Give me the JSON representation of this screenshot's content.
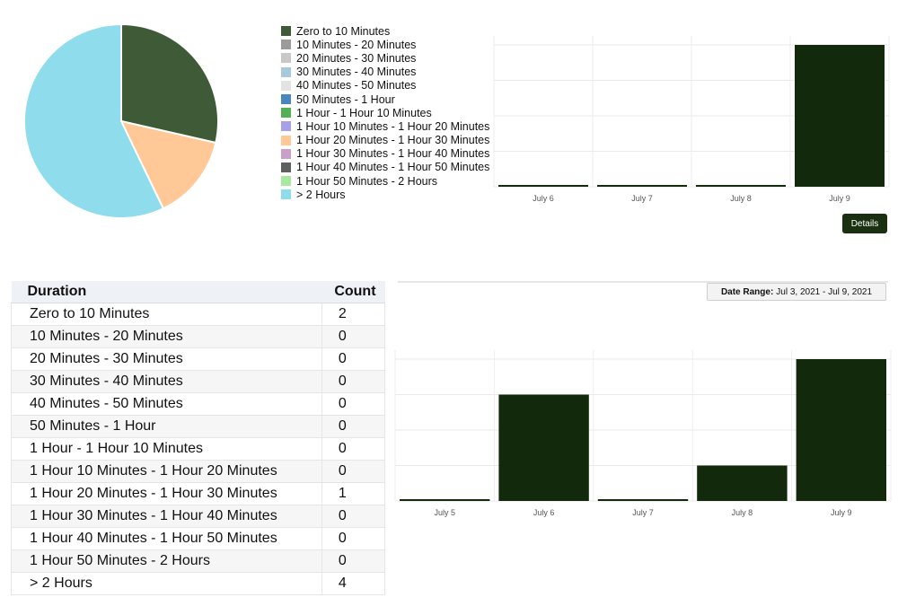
{
  "pie_chart": {
    "slices": [
      {
        "label": "Zero to 10 Minutes",
        "value": 2,
        "color": "#3f5a36"
      },
      {
        "label": "1 Hour 20 Minutes - 1 Hour 30 Minutes",
        "value": 1,
        "color": "#ffc896"
      },
      {
        "label": "> 2 Hours",
        "value": 4,
        "color": "#8edcec"
      }
    ]
  },
  "legend": [
    {
      "label": "Zero to 10 Minutes",
      "color": "#3f5a36"
    },
    {
      "label": "10 Minutes - 20 Minutes",
      "color": "#9b9b9b"
    },
    {
      "label": "20 Minutes - 30 Minutes",
      "color": "#c8c8c8"
    },
    {
      "label": "30 Minutes - 40 Minutes",
      "color": "#a8c8dc"
    },
    {
      "label": "40 Minutes - 50 Minutes",
      "color": "#e3e3e3"
    },
    {
      "label": "50 Minutes - 1 Hour",
      "color": "#4a86c0"
    },
    {
      "label": "1 Hour - 1 Hour 10 Minutes",
      "color": "#54b054"
    },
    {
      "label": "1 Hour 10 Minutes - 1 Hour 20 Minutes",
      "color": "#a5a0e8"
    },
    {
      "label": "1 Hour 20 Minutes - 1 Hour 30 Minutes",
      "color": "#ffc896"
    },
    {
      "label": "1 Hour 30 Minutes - 1 Hour 40 Minutes",
      "color": "#c8a0c8"
    },
    {
      "label": "1 Hour 40 Minutes - 1 Hour 50 Minutes",
      "color": "#5f5f5f"
    },
    {
      "label": "1 Hour 50 Minutes - 2 Hours",
      "color": "#a8e8a0"
    },
    {
      "label": "> 2 Hours",
      "color": "#8edcec"
    }
  ],
  "details_button": {
    "label": "Details"
  },
  "date_range": {
    "label": "Date Range:",
    "value": "Jul 3, 2021 - Jul 9, 2021"
  },
  "table": {
    "headers": [
      "Duration",
      "Count"
    ],
    "rows": [
      {
        "duration": "Zero to 10 Minutes",
        "count": "2"
      },
      {
        "duration": "10 Minutes - 20 Minutes",
        "count": "0"
      },
      {
        "duration": "20 Minutes - 30 Minutes",
        "count": "0"
      },
      {
        "duration": "30 Minutes - 40 Minutes",
        "count": "0"
      },
      {
        "duration": "40 Minutes - 50 Minutes",
        "count": "0"
      },
      {
        "duration": "50 Minutes - 1 Hour",
        "count": "0"
      },
      {
        "duration": "1 Hour - 1 Hour 10 Minutes",
        "count": "0"
      },
      {
        "duration": "1 Hour 10 Minutes - 1 Hour 20 Minutes",
        "count": "0"
      },
      {
        "duration": "1 Hour 20 Minutes - 1 Hour 30 Minutes",
        "count": "1"
      },
      {
        "duration": "1 Hour 30 Minutes - 1 Hour 40 Minutes",
        "count": "0"
      },
      {
        "duration": "1 Hour 40 Minutes - 1 Hour 50 Minutes",
        "count": "0"
      },
      {
        "duration": "1 Hour 50 Minutes - 2 Hours",
        "count": "0"
      },
      {
        "duration": "> 2 Hours",
        "count": "4"
      }
    ]
  },
  "chart_data": [
    {
      "type": "pie",
      "slices": [
        {
          "label": "Zero to 10 Minutes",
          "value": 2
        },
        {
          "label": "1 Hour 20 Minutes - 1 Hour 30 Minutes",
          "value": 1
        },
        {
          "label": "> 2 Hours",
          "value": 4
        }
      ]
    },
    {
      "type": "bar",
      "categories": [
        "July 6",
        "July 7",
        "July 8",
        "July 9"
      ],
      "values": [
        0,
        0,
        0,
        7
      ],
      "ylim": [
        0,
        7
      ],
      "bar_color": "#13290b",
      "grid": true
    },
    {
      "type": "bar",
      "categories": [
        "July 5",
        "July 6",
        "July 7",
        "July 8",
        "July 9"
      ],
      "values": [
        0,
        3,
        0,
        1,
        4
      ],
      "ylim": [
        0,
        4
      ],
      "bar_color": "#13290b",
      "grid": true
    }
  ]
}
